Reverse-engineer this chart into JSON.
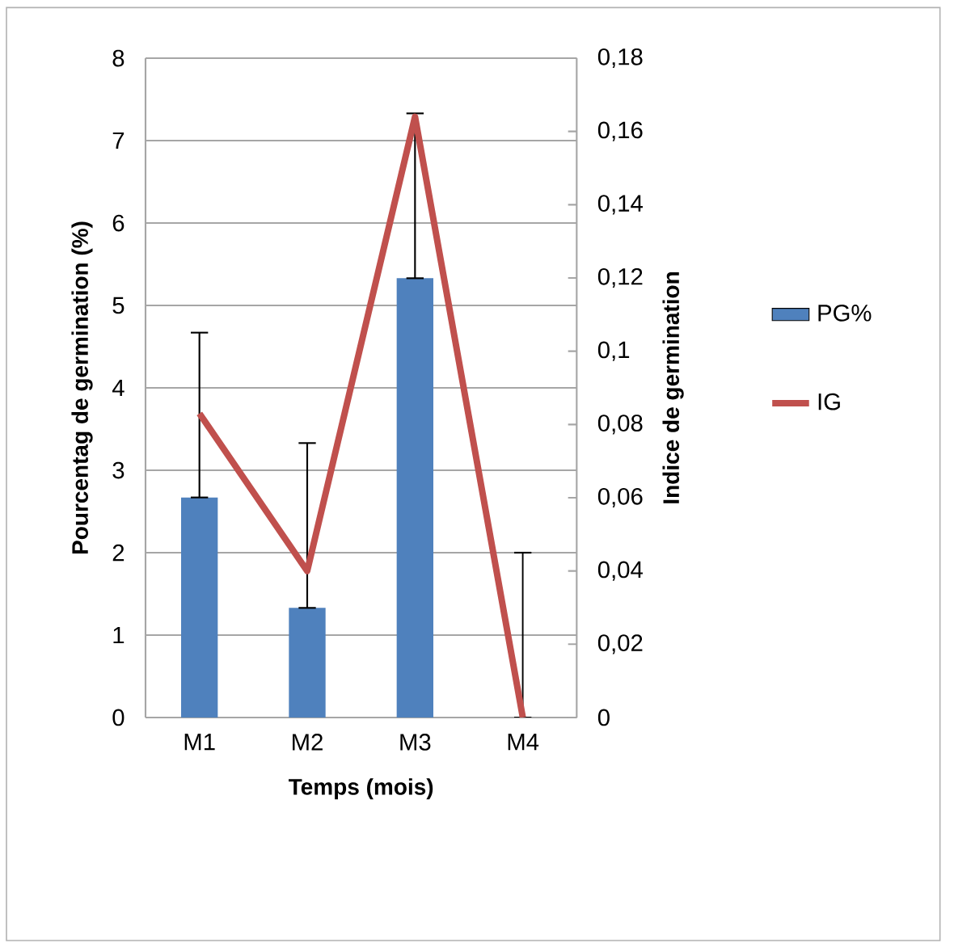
{
  "chart_data": {
    "type": "bar",
    "categories": [
      "M1",
      "M2",
      "M3",
      "M4"
    ],
    "xlabel": "Temps (mois)",
    "ylabel": "Pourcentag de germination (%)",
    "y2label": "Indice de germination",
    "series": [
      {
        "name": "PG%",
        "color": "#4f81bd",
        "values": [
          2.67,
          1.33,
          5.33,
          0
        ],
        "errors": [
          [
            2.67,
            4.67
          ],
          [
            1.33,
            3.33
          ],
          [
            5.33,
            7.33
          ],
          [
            0,
            2
          ]
        ]
      },
      {
        "name": "IG",
        "type": "line",
        "axis": "y2",
        "color": "#c0504d",
        "values": [
          0.083,
          0.04,
          0.164,
          0
        ]
      }
    ],
    "ylim": [
      0,
      8
    ],
    "yticks": [
      0,
      1,
      2,
      3,
      4,
      5,
      6,
      7,
      8
    ],
    "y2lim": [
      0,
      0.18
    ],
    "y2ticks": [
      {
        "value": 0,
        "label": "0"
      },
      {
        "value": 0.02,
        "label": "0,02"
      },
      {
        "value": 0.04,
        "label": "0,04"
      },
      {
        "value": 0.06,
        "label": "0,06"
      },
      {
        "value": 0.08,
        "label": "0,08"
      },
      {
        "value": 0.1,
        "label": "0,1"
      },
      {
        "value": 0.12,
        "label": "0,12"
      },
      {
        "value": 0.14,
        "label": "0,14"
      },
      {
        "value": 0.16,
        "label": "0,16"
      },
      {
        "value": 0.18,
        "label": "0,18"
      }
    ],
    "grid": "y",
    "legend": "right"
  }
}
